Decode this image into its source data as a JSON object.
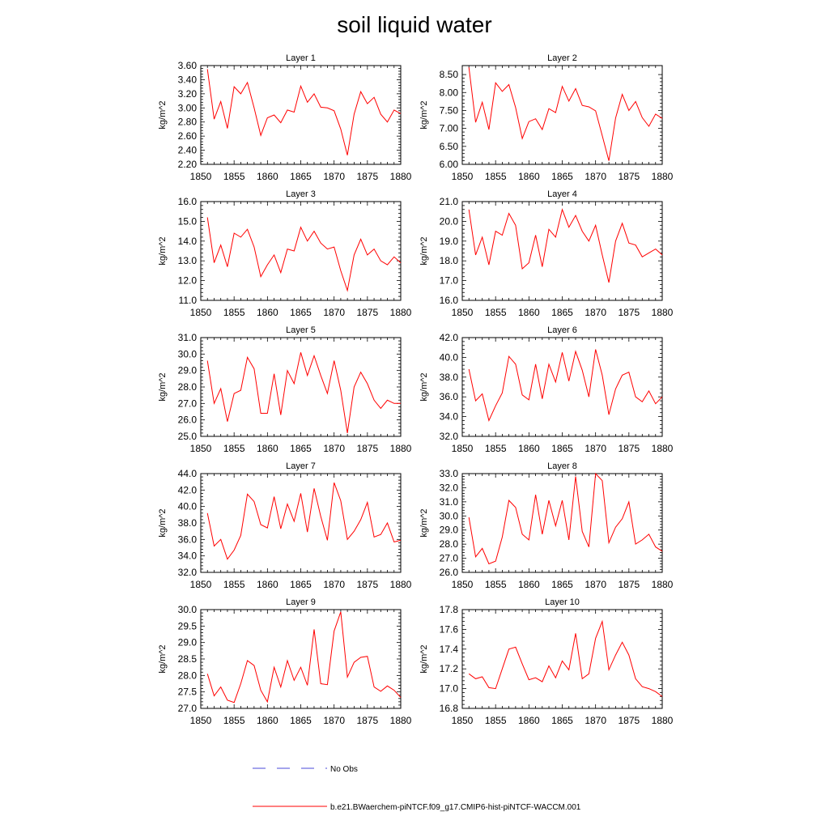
{
  "figure": {
    "title": "soil liquid water",
    "ylabel": "kg/m^2",
    "legend": [
      {
        "label": "No Obs",
        "color": "#4a4ad8",
        "dash": true
      },
      {
        "label": "b.e21.BWaerchem-piNTCF.f09_g17.CMIP6-hist-piNTCF-WACCM.001",
        "color": "#ff0000",
        "dash": false
      }
    ],
    "line_color": "#ff0000"
  },
  "chart_data": [
    {
      "type": "line",
      "title": "Layer 1",
      "ylabel": "kg/m^2",
      "xlim": [
        1850,
        1880
      ],
      "ylim": [
        2.2,
        3.6
      ],
      "xticks": [
        1850,
        1855,
        1860,
        1865,
        1870,
        1875,
        1880
      ],
      "yticks": [
        "2.20",
        "2.40",
        "2.60",
        "2.80",
        "3.00",
        "3.20",
        "3.40",
        "3.60"
      ],
      "x": [
        1851,
        1852,
        1853,
        1854,
        1855,
        1856,
        1857,
        1858,
        1859,
        1860,
        1861,
        1862,
        1863,
        1864,
        1865,
        1866,
        1867,
        1868,
        1869,
        1870,
        1871,
        1872,
        1873,
        1874,
        1875,
        1876,
        1877,
        1878,
        1879,
        1880
      ],
      "values": [
        3.55,
        2.84,
        3.09,
        2.71,
        3.3,
        3.2,
        3.36,
        3.0,
        2.61,
        2.86,
        2.9,
        2.79,
        2.97,
        2.94,
        3.31,
        3.08,
        3.2,
        3.01,
        3.0,
        2.96,
        2.7,
        2.33,
        2.91,
        3.23,
        3.06,
        3.15,
        2.91,
        2.8,
        2.97,
        2.92
      ]
    },
    {
      "type": "line",
      "title": "Layer 2",
      "ylabel": "kg/m^2",
      "xlim": [
        1850,
        1880
      ],
      "ylim": [
        6.0,
        8.75
      ],
      "xticks": [
        1850,
        1855,
        1860,
        1865,
        1870,
        1875,
        1880
      ],
      "yticks": [
        "6.00",
        "6.50",
        "7.00",
        "7.50",
        "8.00",
        "8.50"
      ],
      "x": [
        1851,
        1852,
        1853,
        1854,
        1855,
        1856,
        1857,
        1858,
        1859,
        1860,
        1861,
        1862,
        1863,
        1864,
        1865,
        1866,
        1867,
        1868,
        1869,
        1870,
        1871,
        1872,
        1873,
        1874,
        1875,
        1876,
        1877,
        1878,
        1879,
        1880
      ],
      "values": [
        8.7,
        7.17,
        7.73,
        6.97,
        8.27,
        8.03,
        8.22,
        7.58,
        6.72,
        7.19,
        7.27,
        6.97,
        7.55,
        7.44,
        8.17,
        7.76,
        8.11,
        7.64,
        7.6,
        7.49,
        6.8,
        6.1,
        7.29,
        7.95,
        7.5,
        7.75,
        7.3,
        7.06,
        7.4,
        7.28
      ]
    },
    {
      "type": "line",
      "title": "Layer 3",
      "ylabel": "kg/m^2",
      "xlim": [
        1850,
        1880
      ],
      "ylim": [
        11.0,
        16.0
      ],
      "xticks": [
        1850,
        1855,
        1860,
        1865,
        1870,
        1875,
        1880
      ],
      "yticks": [
        "11.0",
        "12.0",
        "13.0",
        "14.0",
        "15.0",
        "16.0"
      ],
      "x": [
        1851,
        1852,
        1853,
        1854,
        1855,
        1856,
        1857,
        1858,
        1859,
        1860,
        1861,
        1862,
        1863,
        1864,
        1865,
        1866,
        1867,
        1868,
        1869,
        1870,
        1871,
        1872,
        1873,
        1874,
        1875,
        1876,
        1877,
        1878,
        1879,
        1880
      ],
      "values": [
        15.2,
        12.9,
        13.8,
        12.7,
        14.4,
        14.2,
        14.6,
        13.7,
        12.2,
        12.8,
        13.3,
        12.4,
        13.6,
        13.5,
        14.7,
        14.0,
        14.5,
        13.9,
        13.6,
        13.7,
        12.5,
        11.5,
        13.3,
        14.1,
        13.3,
        13.6,
        13.0,
        12.8,
        13.2,
        12.9
      ]
    },
    {
      "type": "line",
      "title": "Layer 4",
      "ylabel": "kg/m^2",
      "xlim": [
        1850,
        1880
      ],
      "ylim": [
        16.0,
        21.0
      ],
      "xticks": [
        1850,
        1855,
        1860,
        1865,
        1870,
        1875,
        1880
      ],
      "yticks": [
        "16.0",
        "17.0",
        "18.0",
        "19.0",
        "20.0",
        "21.0"
      ],
      "x": [
        1851,
        1852,
        1853,
        1854,
        1855,
        1856,
        1857,
        1858,
        1859,
        1860,
        1861,
        1862,
        1863,
        1864,
        1865,
        1866,
        1867,
        1868,
        1869,
        1870,
        1871,
        1872,
        1873,
        1874,
        1875,
        1876,
        1877,
        1878,
        1879,
        1880
      ],
      "values": [
        20.6,
        18.3,
        19.2,
        17.8,
        19.5,
        19.3,
        20.4,
        19.8,
        17.6,
        17.9,
        19.3,
        17.7,
        19.6,
        19.2,
        20.6,
        19.7,
        20.3,
        19.5,
        19.0,
        19.8,
        18.3,
        16.9,
        19.0,
        19.9,
        18.9,
        18.8,
        18.2,
        18.4,
        18.6,
        18.3
      ]
    },
    {
      "type": "line",
      "title": "Layer 5",
      "ylabel": "kg/m^2",
      "xlim": [
        1850,
        1880
      ],
      "ylim": [
        25.0,
        31.0
      ],
      "xticks": [
        1850,
        1855,
        1860,
        1865,
        1870,
        1875,
        1880
      ],
      "yticks": [
        "25.0",
        "26.0",
        "27.0",
        "28.0",
        "29.0",
        "30.0",
        "31.0"
      ],
      "x": [
        1851,
        1852,
        1853,
        1854,
        1855,
        1856,
        1857,
        1858,
        1859,
        1860,
        1861,
        1862,
        1863,
        1864,
        1865,
        1866,
        1867,
        1868,
        1869,
        1870,
        1871,
        1872,
        1873,
        1874,
        1875,
        1876,
        1877,
        1878,
        1879,
        1880
      ],
      "values": [
        29.6,
        27.0,
        27.9,
        25.9,
        27.6,
        27.8,
        29.8,
        29.1,
        26.4,
        26.4,
        28.8,
        26.3,
        29.0,
        28.2,
        30.1,
        28.7,
        29.9,
        28.7,
        27.6,
        29.6,
        27.8,
        25.2,
        28.0,
        28.9,
        28.2,
        27.2,
        26.7,
        27.2,
        27.0,
        27.0
      ]
    },
    {
      "type": "line",
      "title": "Layer 6",
      "ylabel": "kg/m^2",
      "xlim": [
        1850,
        1880
      ],
      "ylim": [
        32.0,
        42.0
      ],
      "xticks": [
        1850,
        1855,
        1860,
        1865,
        1870,
        1875,
        1880
      ],
      "yticks": [
        "32.0",
        "34.0",
        "36.0",
        "38.0",
        "40.0",
        "42.0"
      ],
      "x": [
        1851,
        1852,
        1853,
        1854,
        1855,
        1856,
        1857,
        1858,
        1859,
        1860,
        1861,
        1862,
        1863,
        1864,
        1865,
        1866,
        1867,
        1868,
        1869,
        1870,
        1871,
        1872,
        1873,
        1874,
        1875,
        1876,
        1877,
        1878,
        1879,
        1880
      ],
      "values": [
        38.8,
        35.6,
        36.3,
        33.6,
        35.1,
        36.4,
        40.1,
        39.3,
        36.2,
        35.7,
        39.3,
        35.8,
        39.3,
        37.5,
        40.5,
        37.6,
        40.6,
        38.7,
        36.0,
        40.8,
        38.2,
        34.2,
        36.8,
        38.2,
        38.5,
        36.0,
        35.5,
        36.6,
        35.3,
        36.0
      ]
    },
    {
      "type": "line",
      "title": "Layer 7",
      "ylabel": "kg/m^2",
      "xlim": [
        1850,
        1880
      ],
      "ylim": [
        32.0,
        44.0
      ],
      "xticks": [
        1850,
        1855,
        1860,
        1865,
        1870,
        1875,
        1880
      ],
      "yticks": [
        "32.0",
        "34.0",
        "36.0",
        "38.0",
        "40.0",
        "42.0",
        "44.0"
      ],
      "x": [
        1851,
        1852,
        1853,
        1854,
        1855,
        1856,
        1857,
        1858,
        1859,
        1860,
        1861,
        1862,
        1863,
        1864,
        1865,
        1866,
        1867,
        1868,
        1869,
        1870,
        1871,
        1872,
        1873,
        1874,
        1875,
        1876,
        1877,
        1878,
        1879,
        1880
      ],
      "values": [
        39.2,
        35.2,
        36.0,
        33.6,
        34.7,
        36.5,
        41.5,
        40.6,
        37.8,
        37.4,
        41.2,
        37.3,
        40.3,
        38.2,
        41.6,
        36.9,
        42.2,
        38.8,
        35.9,
        42.9,
        40.7,
        36.0,
        37.0,
        38.4,
        40.5,
        36.3,
        36.6,
        38.0,
        35.7,
        35.9
      ]
    },
    {
      "type": "line",
      "title": "Layer 8",
      "ylabel": "kg/m^2",
      "xlim": [
        1850,
        1880
      ],
      "ylim": [
        26.0,
        33.0
      ],
      "xticks": [
        1850,
        1855,
        1860,
        1865,
        1870,
        1875,
        1880
      ],
      "yticks": [
        "26.0",
        "27.0",
        "28.0",
        "29.0",
        "30.0",
        "31.0",
        "32.0",
        "33.0"
      ],
      "x": [
        1851,
        1852,
        1853,
        1854,
        1855,
        1856,
        1857,
        1858,
        1859,
        1860,
        1861,
        1862,
        1863,
        1864,
        1865,
        1866,
        1867,
        1868,
        1869,
        1870,
        1871,
        1872,
        1873,
        1874,
        1875,
        1876,
        1877,
        1878,
        1879,
        1880
      ],
      "values": [
        29.9,
        27.1,
        27.7,
        26.6,
        26.8,
        28.5,
        31.1,
        30.6,
        28.7,
        28.3,
        31.5,
        28.7,
        31.1,
        29.3,
        31.1,
        28.3,
        32.8,
        28.9,
        27.8,
        33.0,
        32.5,
        28.1,
        29.2,
        29.8,
        31.0,
        28.0,
        28.3,
        28.7,
        27.8,
        27.5
      ]
    },
    {
      "type": "line",
      "title": "Layer 9",
      "ylabel": "kg/m^2",
      "xlim": [
        1850,
        1880
      ],
      "ylim": [
        27.0,
        30.0
      ],
      "xticks": [
        1850,
        1855,
        1860,
        1865,
        1870,
        1875,
        1880
      ],
      "yticks": [
        "27.0",
        "27.5",
        "28.0",
        "28.5",
        "29.0",
        "29.5",
        "30.0"
      ],
      "x": [
        1851,
        1852,
        1853,
        1854,
        1855,
        1856,
        1857,
        1858,
        1859,
        1860,
        1861,
        1862,
        1863,
        1864,
        1865,
        1866,
        1867,
        1868,
        1869,
        1870,
        1871,
        1872,
        1873,
        1874,
        1875,
        1876,
        1877,
        1878,
        1879,
        1880
      ],
      "values": [
        28.05,
        27.38,
        27.65,
        27.25,
        27.18,
        27.75,
        28.45,
        28.3,
        27.55,
        27.2,
        28.25,
        27.65,
        28.45,
        27.85,
        28.25,
        27.7,
        29.4,
        27.75,
        27.72,
        29.35,
        29.93,
        27.95,
        28.4,
        28.55,
        28.58,
        27.65,
        27.52,
        27.68,
        27.55,
        27.33
      ]
    },
    {
      "type": "line",
      "title": "Layer 10",
      "ylabel": "kg/m^2",
      "xlim": [
        1850,
        1880
      ],
      "ylim": [
        16.8,
        17.8
      ],
      "xticks": [
        1850,
        1855,
        1860,
        1865,
        1870,
        1875,
        1880
      ],
      "yticks": [
        "16.8",
        "17.0",
        "17.2",
        "17.4",
        "17.6",
        "17.8"
      ],
      "x": [
        1851,
        1852,
        1853,
        1854,
        1855,
        1856,
        1857,
        1858,
        1859,
        1860,
        1861,
        1862,
        1863,
        1864,
        1865,
        1866,
        1867,
        1868,
        1869,
        1870,
        1871,
        1872,
        1873,
        1874,
        1875,
        1876,
        1877,
        1878,
        1879,
        1880
      ],
      "values": [
        17.15,
        17.1,
        17.12,
        17.01,
        17.0,
        17.2,
        17.4,
        17.42,
        17.25,
        17.09,
        17.11,
        17.07,
        17.23,
        17.11,
        17.28,
        17.19,
        17.56,
        17.1,
        17.15,
        17.51,
        17.68,
        17.19,
        17.34,
        17.47,
        17.34,
        17.1,
        17.02,
        17.0,
        16.97,
        16.92
      ]
    }
  ]
}
